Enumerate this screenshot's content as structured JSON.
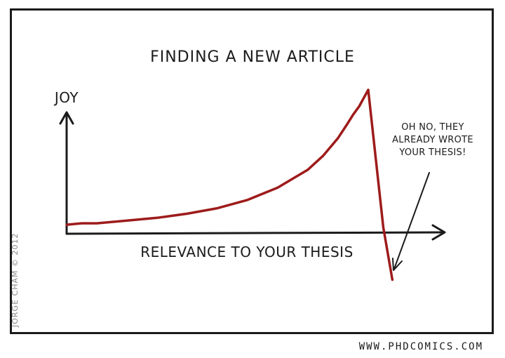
{
  "chart_data": {
    "type": "line",
    "title": "FINDING A NEW ARTICLE",
    "xlabel": "RELEVANCE TO YOUR THESIS",
    "ylabel": "JOY",
    "grid": false,
    "legend": "none",
    "series": [
      {
        "color": "#9e1b1b",
        "x": [
          0,
          0.05,
          0.1,
          0.2,
          0.3,
          0.4,
          0.5,
          0.6,
          0.7,
          0.8,
          0.85,
          0.9,
          0.93,
          0.95,
          0.97,
          1.0,
          1.01,
          1.05,
          1.08
        ],
        "y": [
          0.02,
          0.03,
          0.03,
          0.05,
          0.07,
          0.1,
          0.14,
          0.2,
          0.29,
          0.42,
          0.52,
          0.65,
          0.75,
          0.82,
          0.88,
          1.0,
          0.8,
          0.0,
          -0.38
        ]
      }
    ],
    "annotations": [
      {
        "lines": [
          "OH NO, THEY",
          "ALREADY WROTE",
          "YOUR THESIS!"
        ]
      }
    ]
  },
  "credit": "JORGE CHAM © 2012",
  "site": "WWW.PHDCOMICS.COM",
  "colors": {
    "ink": "#1b1b1b",
    "curve": "#9e1b1b",
    "credit": "#8a8a8a"
  }
}
